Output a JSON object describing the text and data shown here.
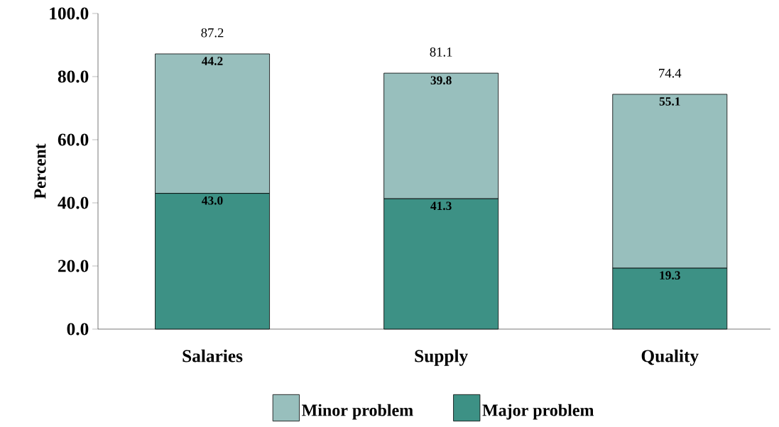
{
  "chart_data": {
    "type": "bar",
    "stacked": true,
    "ylabel": "Percent",
    "categories": [
      "Salaries",
      "Supply",
      "Quality"
    ],
    "series": [
      {
        "name": "Major problem",
        "color": "#3d9185",
        "values": [
          43.0,
          41.3,
          19.3
        ],
        "value_labels": [
          "43.0",
          "41.3",
          "19.3"
        ]
      },
      {
        "name": "Minor problem",
        "color": "#98bfbd",
        "values": [
          44.2,
          39.8,
          55.1
        ],
        "value_labels": [
          "44.2",
          "39.8",
          "55.1"
        ]
      }
    ],
    "ylim": [
      0,
      100
    ],
    "yticks": [
      {
        "value": 0,
        "label": "0.0"
      },
      {
        "value": 20,
        "label": "20.0"
      },
      {
        "value": 40,
        "label": "40.0"
      },
      {
        "value": 60,
        "label": "60.0"
      },
      {
        "value": 80,
        "label": "80.0"
      },
      {
        "value": 100,
        "label": "100.0"
      }
    ],
    "data_labels": true,
    "totals": [
      "87.2",
      "81.1",
      "74.4"
    ],
    "grid": false,
    "legend": "bottom"
  }
}
